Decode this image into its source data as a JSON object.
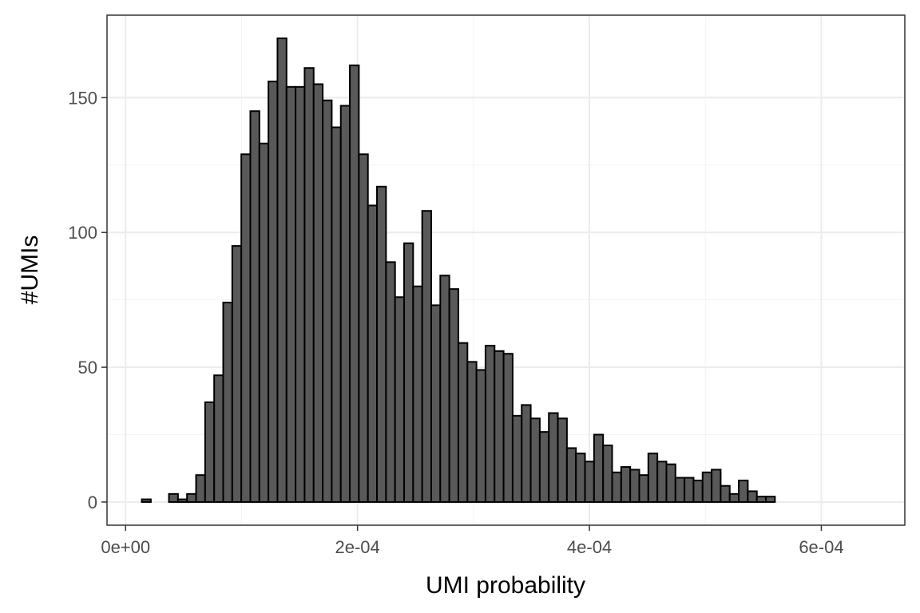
{
  "chart_data": {
    "type": "bar",
    "title": "",
    "xlabel": "UMI probability",
    "ylabel": "#UMIs",
    "xlim": [
      -1.6e-05,
      0.000672
    ],
    "ylim": [
      -8.6,
      180.6
    ],
    "x_ticks": [
      {
        "value": 0,
        "label": "0e+00"
      },
      {
        "value": 0.0002,
        "label": "2e-04"
      },
      {
        "value": 0.0004,
        "label": "4e-04"
      },
      {
        "value": 0.0006,
        "label": "6e-04"
      }
    ],
    "y_ticks": [
      {
        "value": 0,
        "label": "0"
      },
      {
        "value": 50,
        "label": "50"
      },
      {
        "value": 100,
        "label": "100"
      },
      {
        "value": 150,
        "label": "150"
      }
    ],
    "grid": true,
    "bin_start": 1.4e-05,
    "bin_width": 7.8e-06,
    "values": [
      1,
      0,
      0,
      3,
      1,
      3,
      10,
      37,
      47,
      74,
      95,
      129,
      145,
      133,
      156,
      172,
      154,
      154,
      161,
      155,
      149,
      139,
      147,
      162,
      129,
      110,
      117,
      89,
      76,
      96,
      80,
      108,
      73,
      84,
      79,
      59,
      52,
      49,
      58,
      56,
      55,
      32,
      36,
      31,
      26,
      33,
      31,
      20,
      18,
      15,
      25,
      21,
      11,
      13,
      12,
      10,
      18,
      15,
      14,
      9,
      9,
      8,
      11,
      12,
      6,
      3,
      8,
      4,
      2,
      2
    ],
    "colors": {
      "bar_fill": "#595959",
      "bar_stroke": "#000000",
      "grid_major": "#ebebeb",
      "grid_minor": "#f4f4f4",
      "panel_border": "#333333",
      "tick_text": "#4d4d4d",
      "title_text": "#000000"
    }
  }
}
